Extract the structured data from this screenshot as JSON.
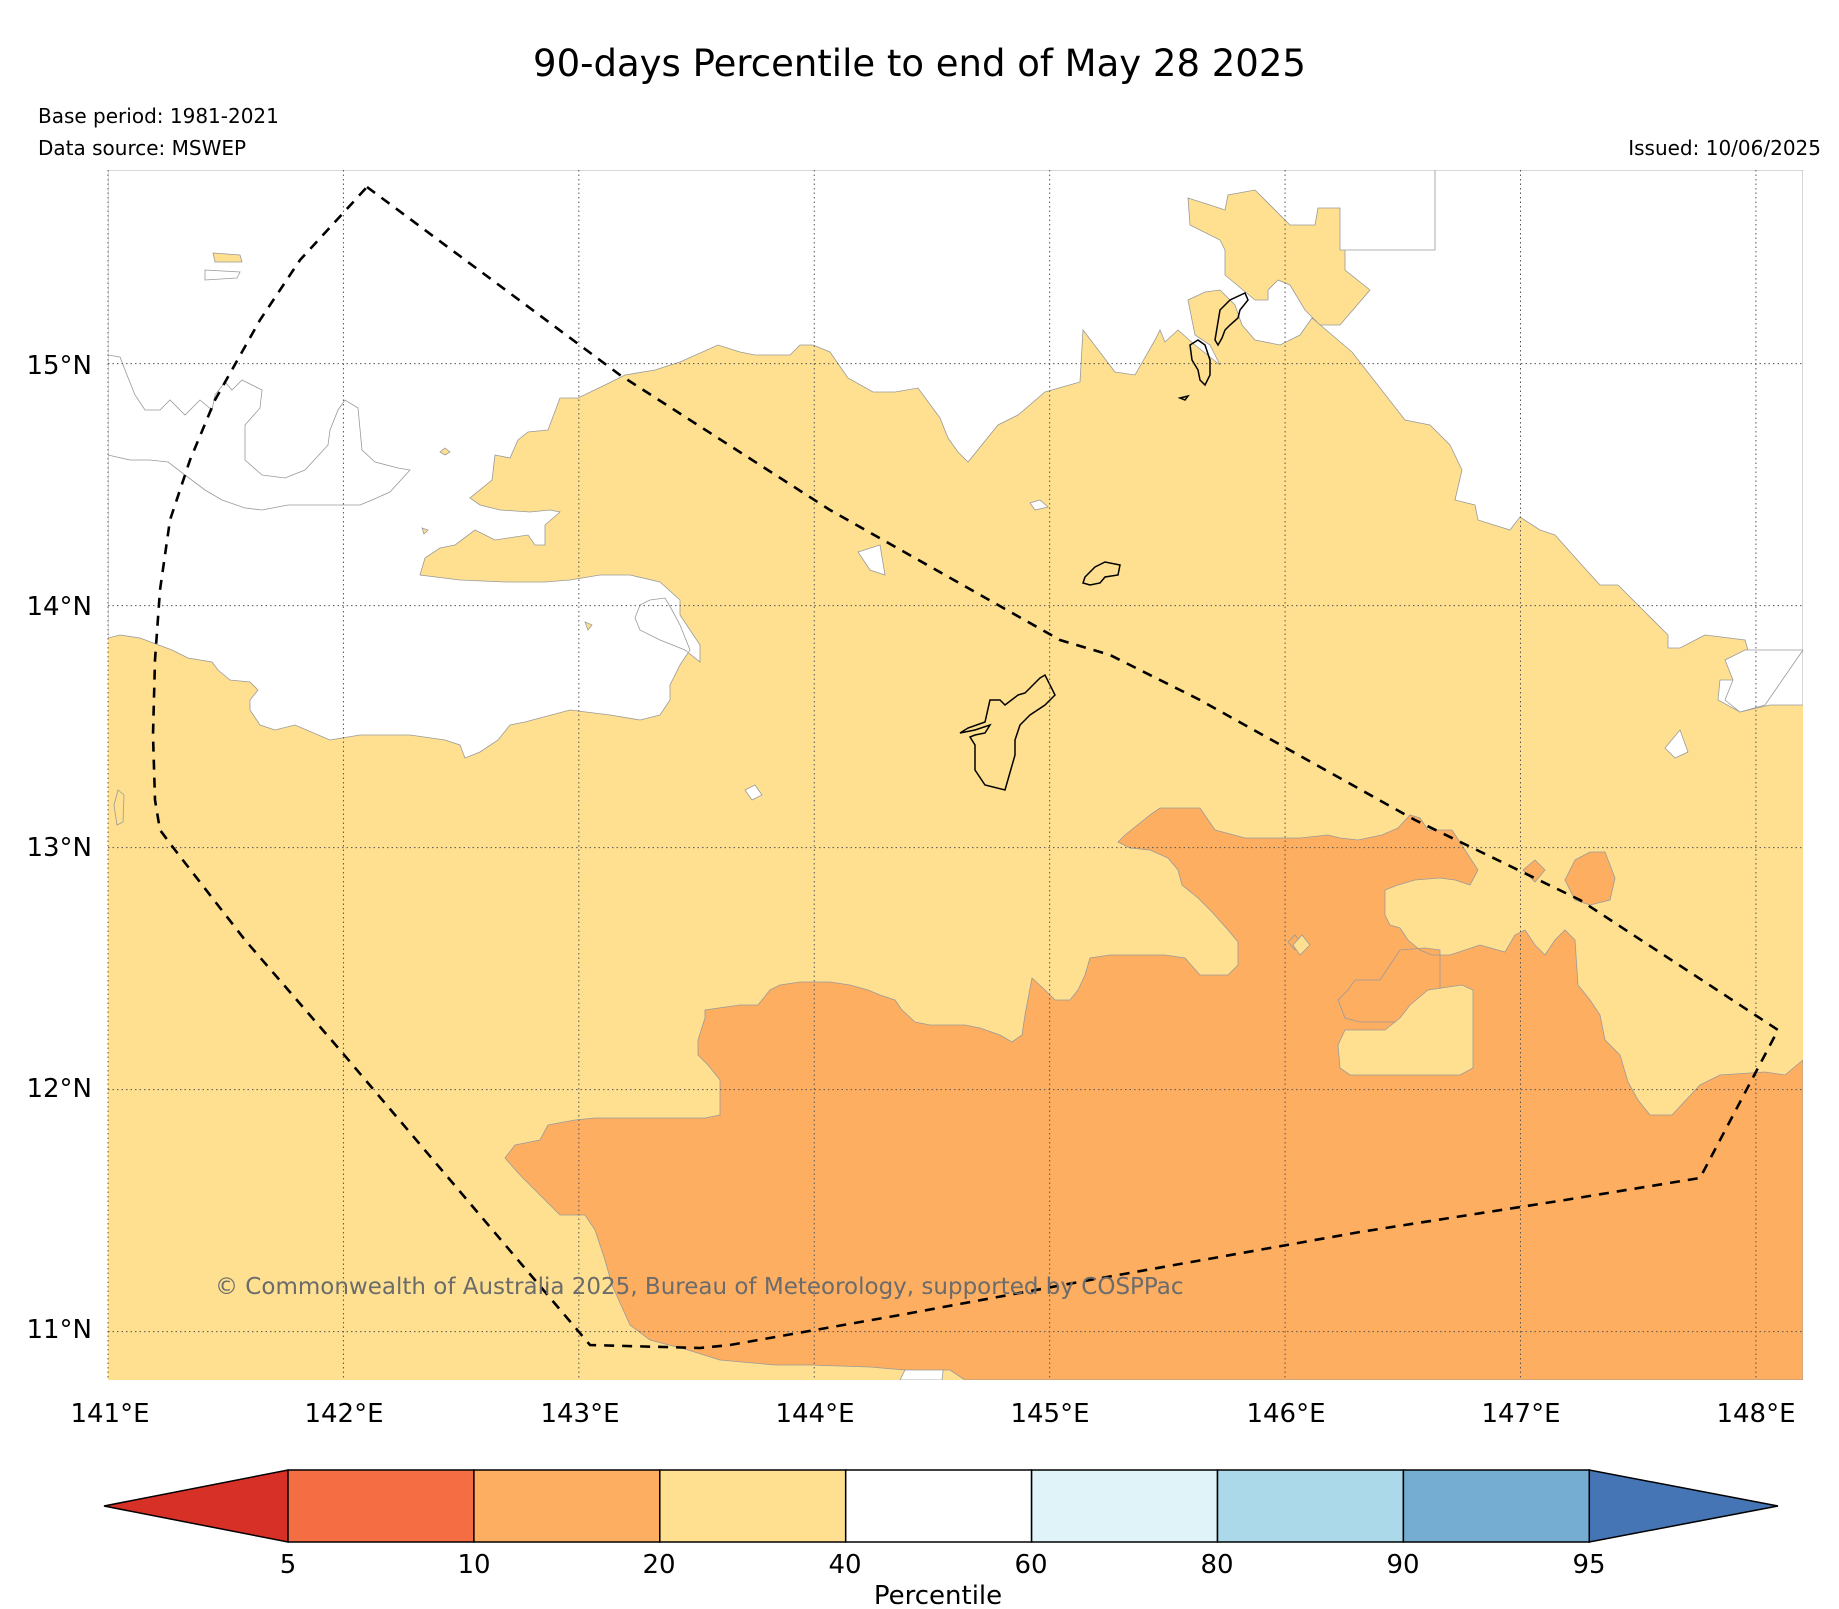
{
  "title": "90-days Percentile to end of May 28 2025",
  "base_period": "Base period: 1981-2021",
  "data_source": "Data source: MSWEP",
  "issued": "Issued: 10/06/2025",
  "copyright": "© Commonwealth of Australia 2025, Bureau of Meteorology, supported by COSPPac",
  "map": {
    "lon_range": [
      141.0,
      148.2
    ],
    "lat_range": [
      10.8,
      15.8
    ],
    "x_ticks": [
      "141°E",
      "142°E",
      "143°E",
      "144°E",
      "145°E",
      "146°E",
      "147°E",
      "148°E"
    ],
    "y_ticks": [
      "11°N",
      "12°N",
      "13°N",
      "14°N",
      "15°N"
    ],
    "grid": "dotted",
    "region_outline": "dashed",
    "category_colors": {
      "below_5": "#d73027",
      "5_10": "#f46d43",
      "10_20": "#fdae61",
      "20_40": "#fee090",
      "40_60": "#ffffff",
      "60_80": "#e0f3f8",
      "80_90": "#abd9e9",
      "90_95": "#74add1",
      "above_95": "#4575b4"
    }
  },
  "colorbar": {
    "label": "Percentile",
    "ticks": [
      "5",
      "10",
      "20",
      "40",
      "60",
      "80",
      "90",
      "95"
    ],
    "colors": [
      "#d73027",
      "#f46d43",
      "#fdae61",
      "#fee090",
      "#ffffff",
      "#e0f3f8",
      "#abd9e9",
      "#74add1",
      "#4575b4"
    ]
  }
}
